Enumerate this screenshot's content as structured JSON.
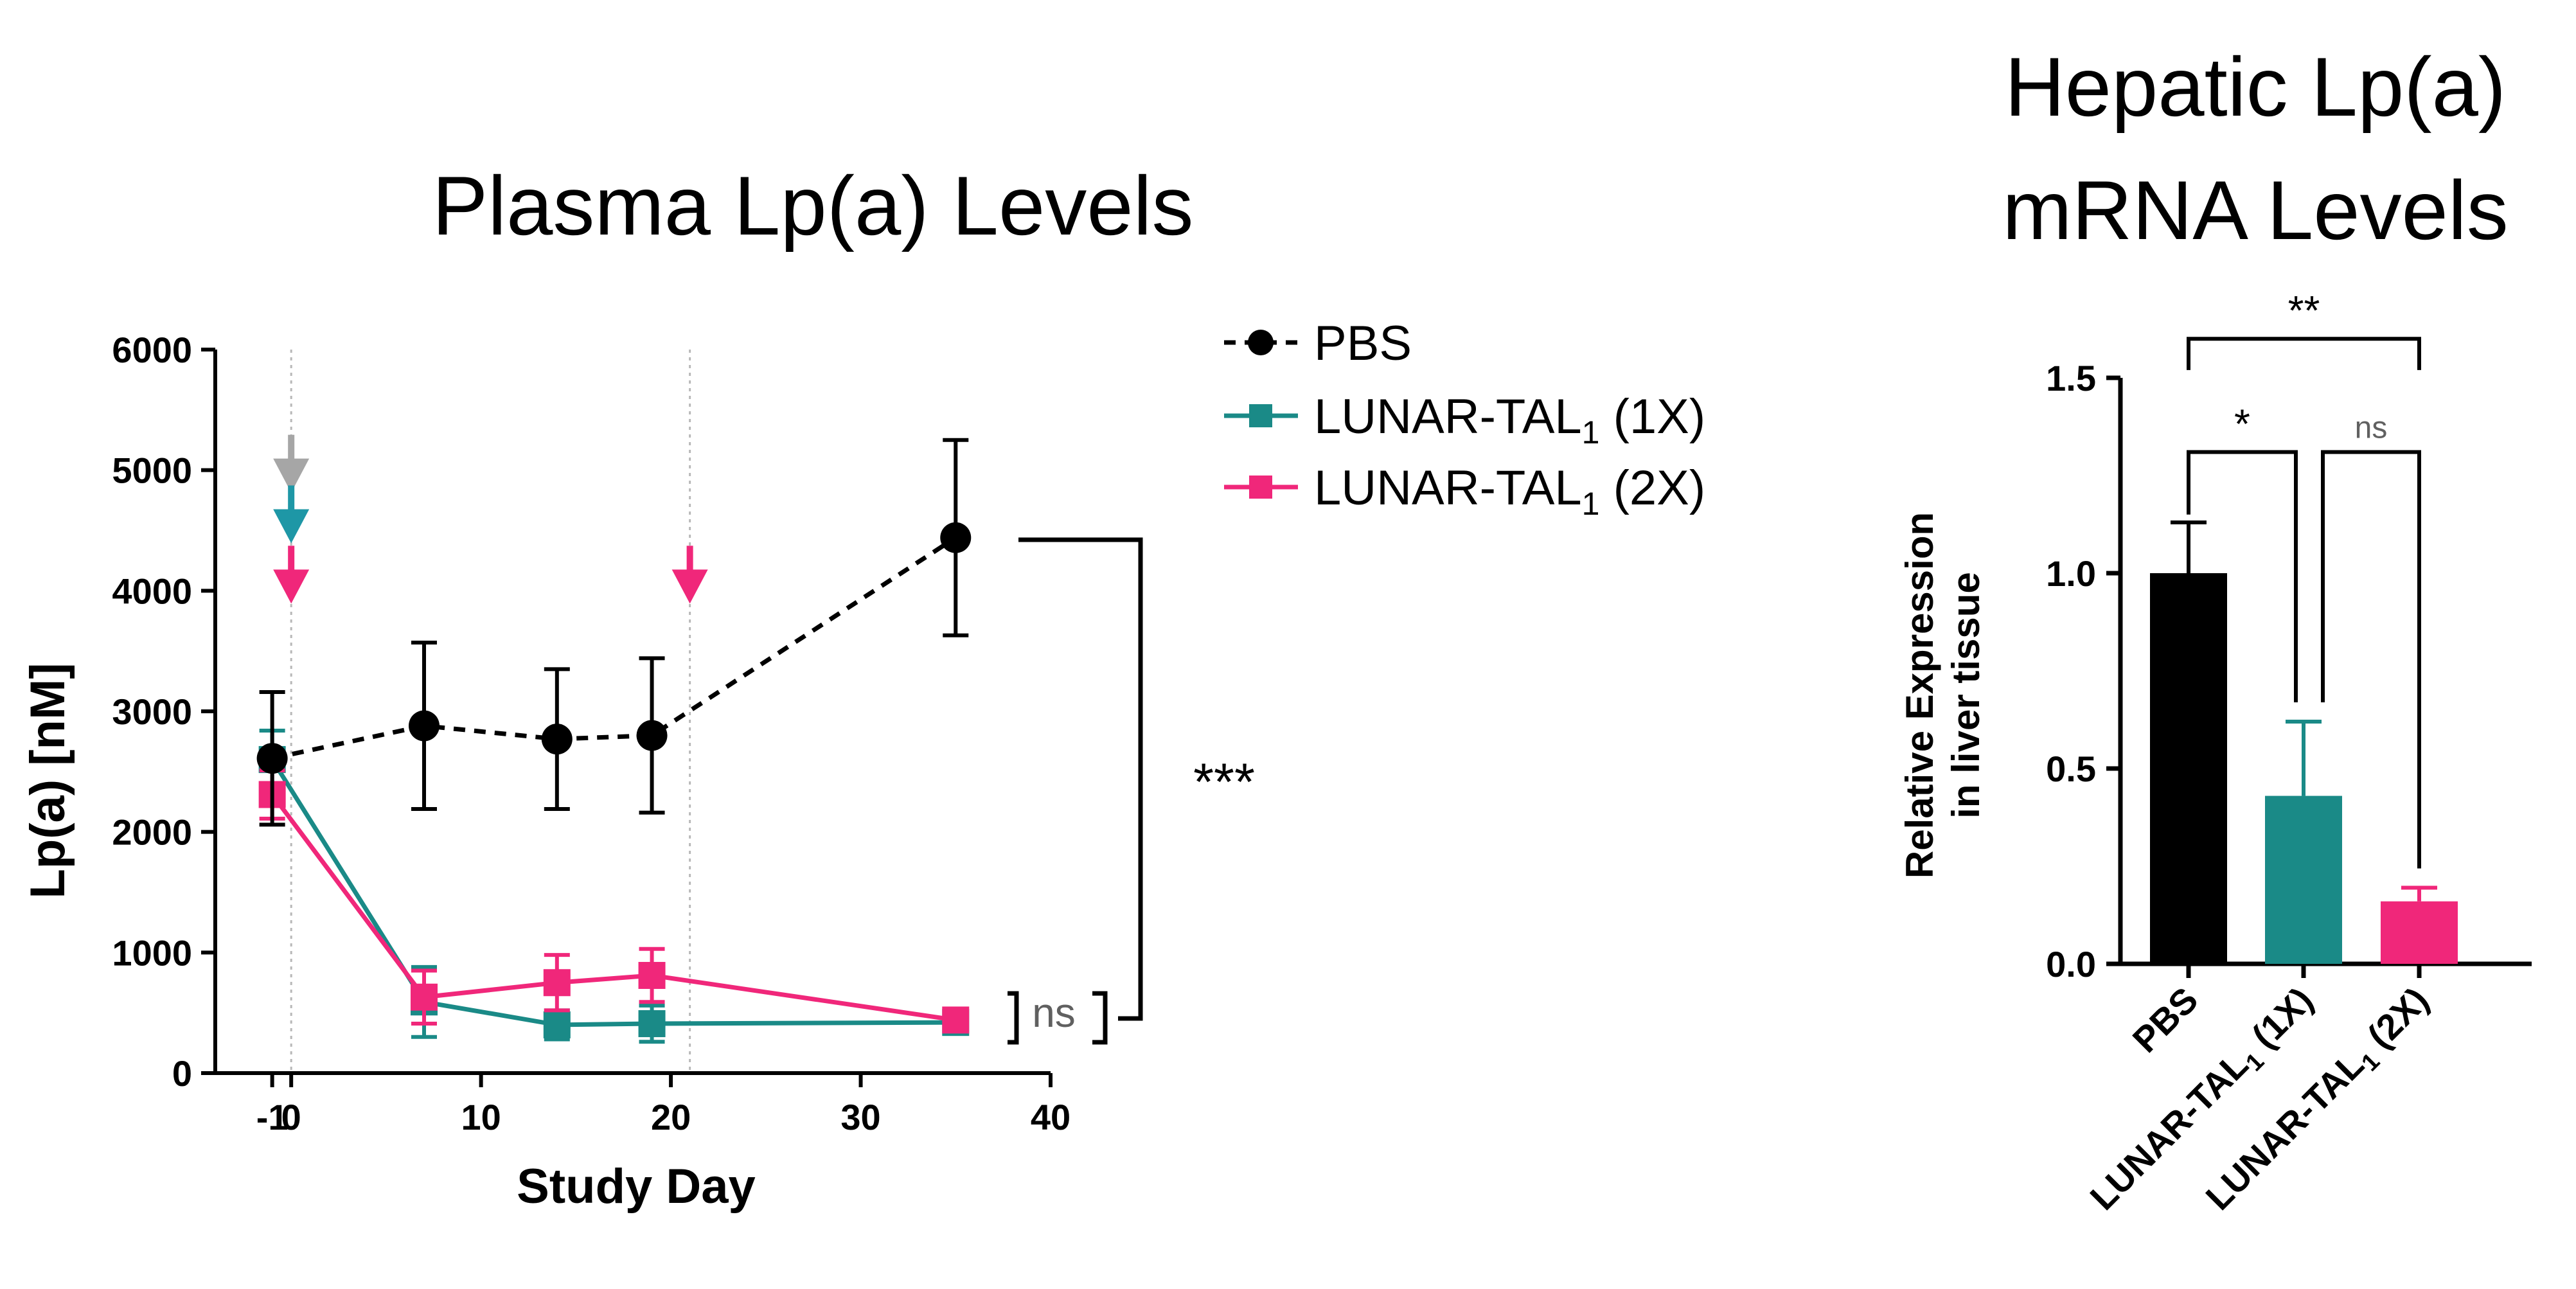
{
  "colors": {
    "pbs": "#000000",
    "one_x": "#1a8a87",
    "two_x": "#f0277a",
    "gray_arrow": "#a6a6a6",
    "teal_arrow": "#1e97a6",
    "axis": "#000000",
    "significance_neutral": "#606060"
  },
  "chart_data": [
    {
      "type": "line",
      "title": "Plasma Lp(a) Levels",
      "xlabel": "Study Day",
      "ylabel": "Lp(a) [nM]",
      "xlim": [
        -4,
        40
      ],
      "ylim": [
        0,
        6000
      ],
      "xticks": [
        -1,
        0,
        10,
        20,
        30,
        40
      ],
      "xtick_labels": [
        "-1",
        "0",
        "10",
        "20",
        "30",
        "40"
      ],
      "yticks": [
        0,
        1000,
        2000,
        3000,
        4000,
        5000,
        6000
      ],
      "ytick_labels": [
        "0",
        "1000",
        "2000",
        "3000",
        "4000",
        "5000",
        "6000"
      ],
      "dotted_vlines": [
        0,
        21
      ],
      "legend_position": "top-right",
      "series": [
        {
          "name": "PBS",
          "name_main": "PBS",
          "name_sub": "",
          "name_tail": "",
          "color_key": "pbs",
          "marker": "circle",
          "linestyle": "dashed",
          "x": [
            -1,
            7,
            14,
            19,
            35
          ],
          "y": [
            2610,
            2880,
            2770,
            2800,
            4440
          ],
          "err": [
            550,
            690,
            580,
            640,
            810
          ]
        },
        {
          "name": "LUNAR-TAL1 (1X)",
          "name_main": "LUNAR-TAL",
          "name_sub": "1",
          "name_tail": " (1X)",
          "color_key": "one_x",
          "marker": "square",
          "linestyle": "solid",
          "x": [
            -1,
            7,
            14,
            19,
            35
          ],
          "y": [
            2600,
            590,
            400,
            410,
            420
          ],
          "err": [
            240,
            290,
            120,
            150,
            70
          ]
        },
        {
          "name": "LUNAR-TAL1 (2X)",
          "name_main": "LUNAR-TAL",
          "name_sub": "1",
          "name_tail": " (2X)",
          "color_key": "two_x",
          "marker": "square",
          "linestyle": "solid",
          "x": [
            -1,
            7,
            14,
            19,
            35
          ],
          "y": [
            2310,
            630,
            750,
            810,
            440
          ],
          "err": [
            200,
            220,
            230,
            220,
            60
          ]
        }
      ],
      "dose_arrows": [
        {
          "x": 0,
          "y": 5000,
          "color_key": "gray_arrow"
        },
        {
          "x": 0,
          "y": 4580,
          "color_key": "teal_arrow"
        },
        {
          "x": 0,
          "y": 4080,
          "color_key": "two_x"
        },
        {
          "x": 21,
          "y": 4080,
          "color_key": "two_x"
        }
      ],
      "annotations": [
        {
          "text": "***",
          "between": [
            "PBS",
            "treated groups"
          ],
          "at_y": [
            4430,
            430
          ]
        },
        {
          "text": "ns",
          "between": [
            "LUNAR-TAL1 (1X)",
            "LUNAR-TAL1 (2X)"
          ],
          "at_y": [
            580,
            260
          ]
        }
      ]
    },
    {
      "type": "bar",
      "title_lines": [
        "Hepatic Lp(a)",
        "mRNA Levels"
      ],
      "ylabel_lines": [
        "Relative Expression",
        "in liver tissue"
      ],
      "ylim": [
        0,
        1.5
      ],
      "yticks": [
        0,
        0.5,
        1.0,
        1.5
      ],
      "ytick_labels": [
        "0.0",
        "0.5",
        "1.0",
        "1.5"
      ],
      "categories": [
        "PBS",
        "LUNAR-TAL1 (1X)",
        "LUNAR-TAL1 (2X)"
      ],
      "category_labels": [
        {
          "main": "PBS",
          "sub": "",
          "tail": ""
        },
        {
          "main": "LUNAR-TAL",
          "sub": "1",
          "tail": " (1X)"
        },
        {
          "main": "LUNAR-TAL",
          "sub": "1",
          "tail": " (2X)"
        }
      ],
      "values": [
        1.0,
        0.43,
        0.16
      ],
      "errors": [
        0.13,
        0.19,
        0.035
      ],
      "color_keys": [
        "pbs",
        "one_x",
        "two_x"
      ],
      "significance": [
        {
          "text": "**",
          "from": 0,
          "to": 2,
          "level": 1.6
        },
        {
          "text": "*",
          "from": 0,
          "to": 1,
          "level": 1.31
        },
        {
          "text": "ns",
          "from": 1,
          "to": 2,
          "level": 1.31
        }
      ]
    }
  ]
}
